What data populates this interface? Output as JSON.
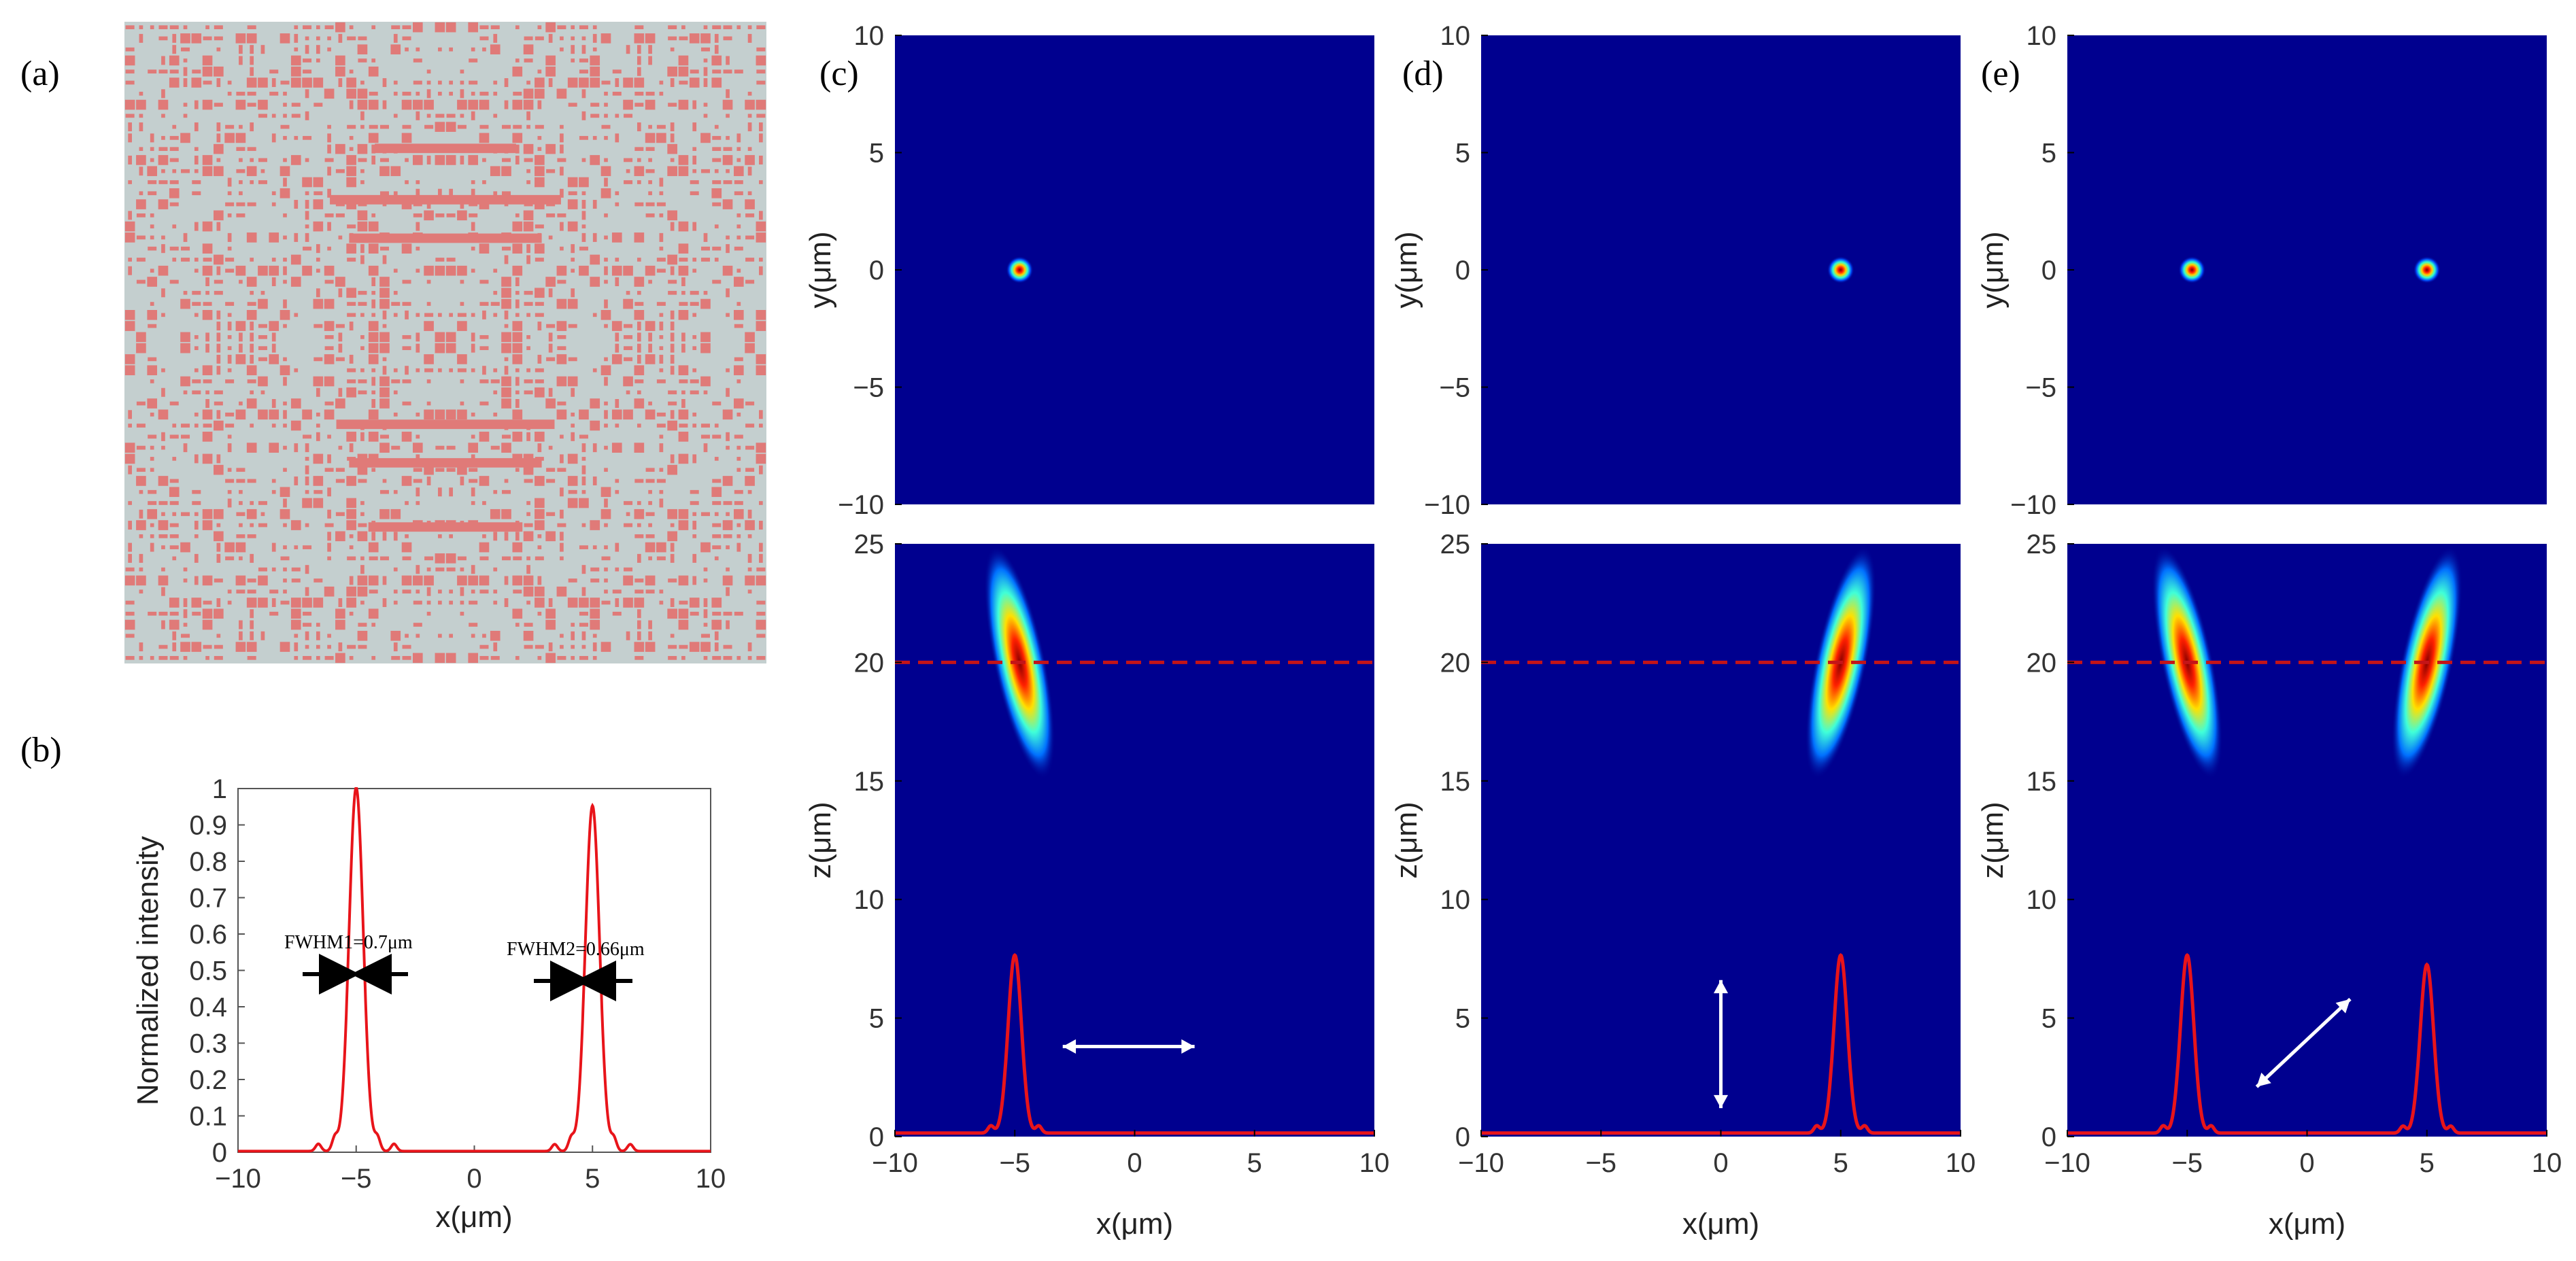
{
  "panel_labels": [
    "(a)",
    "(b)",
    "(c)",
    "(d)",
    "(e)"
  ],
  "colors": {
    "pattern_bg": "#c4cfcf",
    "pattern_block": "#e07a78",
    "map_bg": "#00008f",
    "curve": "#e8141a",
    "dash": "#c41418",
    "arrow_white": "#ffffff"
  },
  "chart_data": [
    {
      "id": "a",
      "type": "other",
      "description_label": "(a)"
    },
    {
      "id": "b",
      "type": "line",
      "title": "",
      "xlabel": "x(μm)",
      "ylabel": "Normalized intensity",
      "xlim": [
        -10,
        10
      ],
      "ylim": [
        0,
        1
      ],
      "xticks": [
        "−10",
        "−5",
        "0",
        "5",
        "10"
      ],
      "yticks": [
        "0",
        "0.1",
        "0.2",
        "0.3",
        "0.4",
        "0.5",
        "0.6",
        "0.7",
        "0.8",
        "0.9",
        "1"
      ],
      "series": [
        {
          "name": "intensity",
          "peaks": [
            {
              "x": -5,
              "y": 1.0
            },
            {
              "x": 5,
              "y": 0.95
            }
          ]
        }
      ],
      "annotations": [
        "FWHM1=0.7μm",
        "FWHM2=0.66μm"
      ]
    },
    {
      "id": "c",
      "type": "heatmap",
      "top": {
        "xlim": [
          -10,
          10
        ],
        "ylim": [
          -10,
          10
        ],
        "ylabel": "y(μm)",
        "yticks": [
          "10",
          "5",
          "0",
          "−5",
          "−10"
        ],
        "spots": [
          {
            "x": -4.8,
            "y": 0
          }
        ]
      },
      "bottom": {
        "xlim": [
          -10,
          10
        ],
        "ylim": [
          0,
          25
        ],
        "xlabel": "x(μm)",
        "ylabel": "z(μm)",
        "xticks": [
          "−10",
          "−5",
          "0",
          "5",
          "10"
        ],
        "yticks": [
          "25",
          "20",
          "15",
          "10",
          "5",
          "0"
        ],
        "focus_z": 20,
        "foci": [
          {
            "x": -4.8,
            "z": 20
          }
        ],
        "profile_peaks": [
          {
            "x": -5,
            "height": 7.5
          }
        ],
        "arrow": "horizontal"
      }
    },
    {
      "id": "d",
      "type": "heatmap",
      "top": {
        "xlim": [
          -10,
          10
        ],
        "ylim": [
          -10,
          10
        ],
        "ylabel": "y(μm)",
        "yticks": [
          "10",
          "5",
          "0",
          "−5",
          "−10"
        ],
        "spots": [
          {
            "x": 5,
            "y": 0
          }
        ]
      },
      "bottom": {
        "xlim": [
          -10,
          10
        ],
        "ylim": [
          0,
          25
        ],
        "xlabel": "x(μm)",
        "ylabel": "z(μm)",
        "xticks": [
          "−10",
          "−5",
          "0",
          "5",
          "10"
        ],
        "yticks": [
          "25",
          "20",
          "15",
          "10",
          "5",
          "0"
        ],
        "focus_z": 20,
        "foci": [
          {
            "x": 5,
            "z": 20
          }
        ],
        "profile_peaks": [
          {
            "x": 5,
            "height": 7.5
          }
        ],
        "arrow": "vertical"
      }
    },
    {
      "id": "e",
      "type": "heatmap",
      "top": {
        "xlim": [
          -10,
          10
        ],
        "ylim": [
          -10,
          10
        ],
        "ylabel": "y(μm)",
        "yticks": [
          "10",
          "5",
          "0",
          "−5",
          "−10"
        ],
        "spots": [
          {
            "x": -4.8,
            "y": 0
          },
          {
            "x": 5,
            "y": 0
          }
        ]
      },
      "bottom": {
        "xlim": [
          -10,
          10
        ],
        "ylim": [
          0,
          25
        ],
        "xlabel": "x(μm)",
        "ylabel": "z(μm)",
        "xticks": [
          "−10",
          "−5",
          "0",
          "5",
          "10"
        ],
        "yticks": [
          "25",
          "20",
          "15",
          "10",
          "5",
          "0"
        ],
        "focus_z": 20,
        "foci": [
          {
            "x": -5,
            "z": 20
          },
          {
            "x": 5,
            "z": 20
          }
        ],
        "profile_peaks": [
          {
            "x": -5,
            "height": 7.5
          },
          {
            "x": 5,
            "height": 7.1
          }
        ],
        "arrow": "diagonal"
      }
    }
  ]
}
